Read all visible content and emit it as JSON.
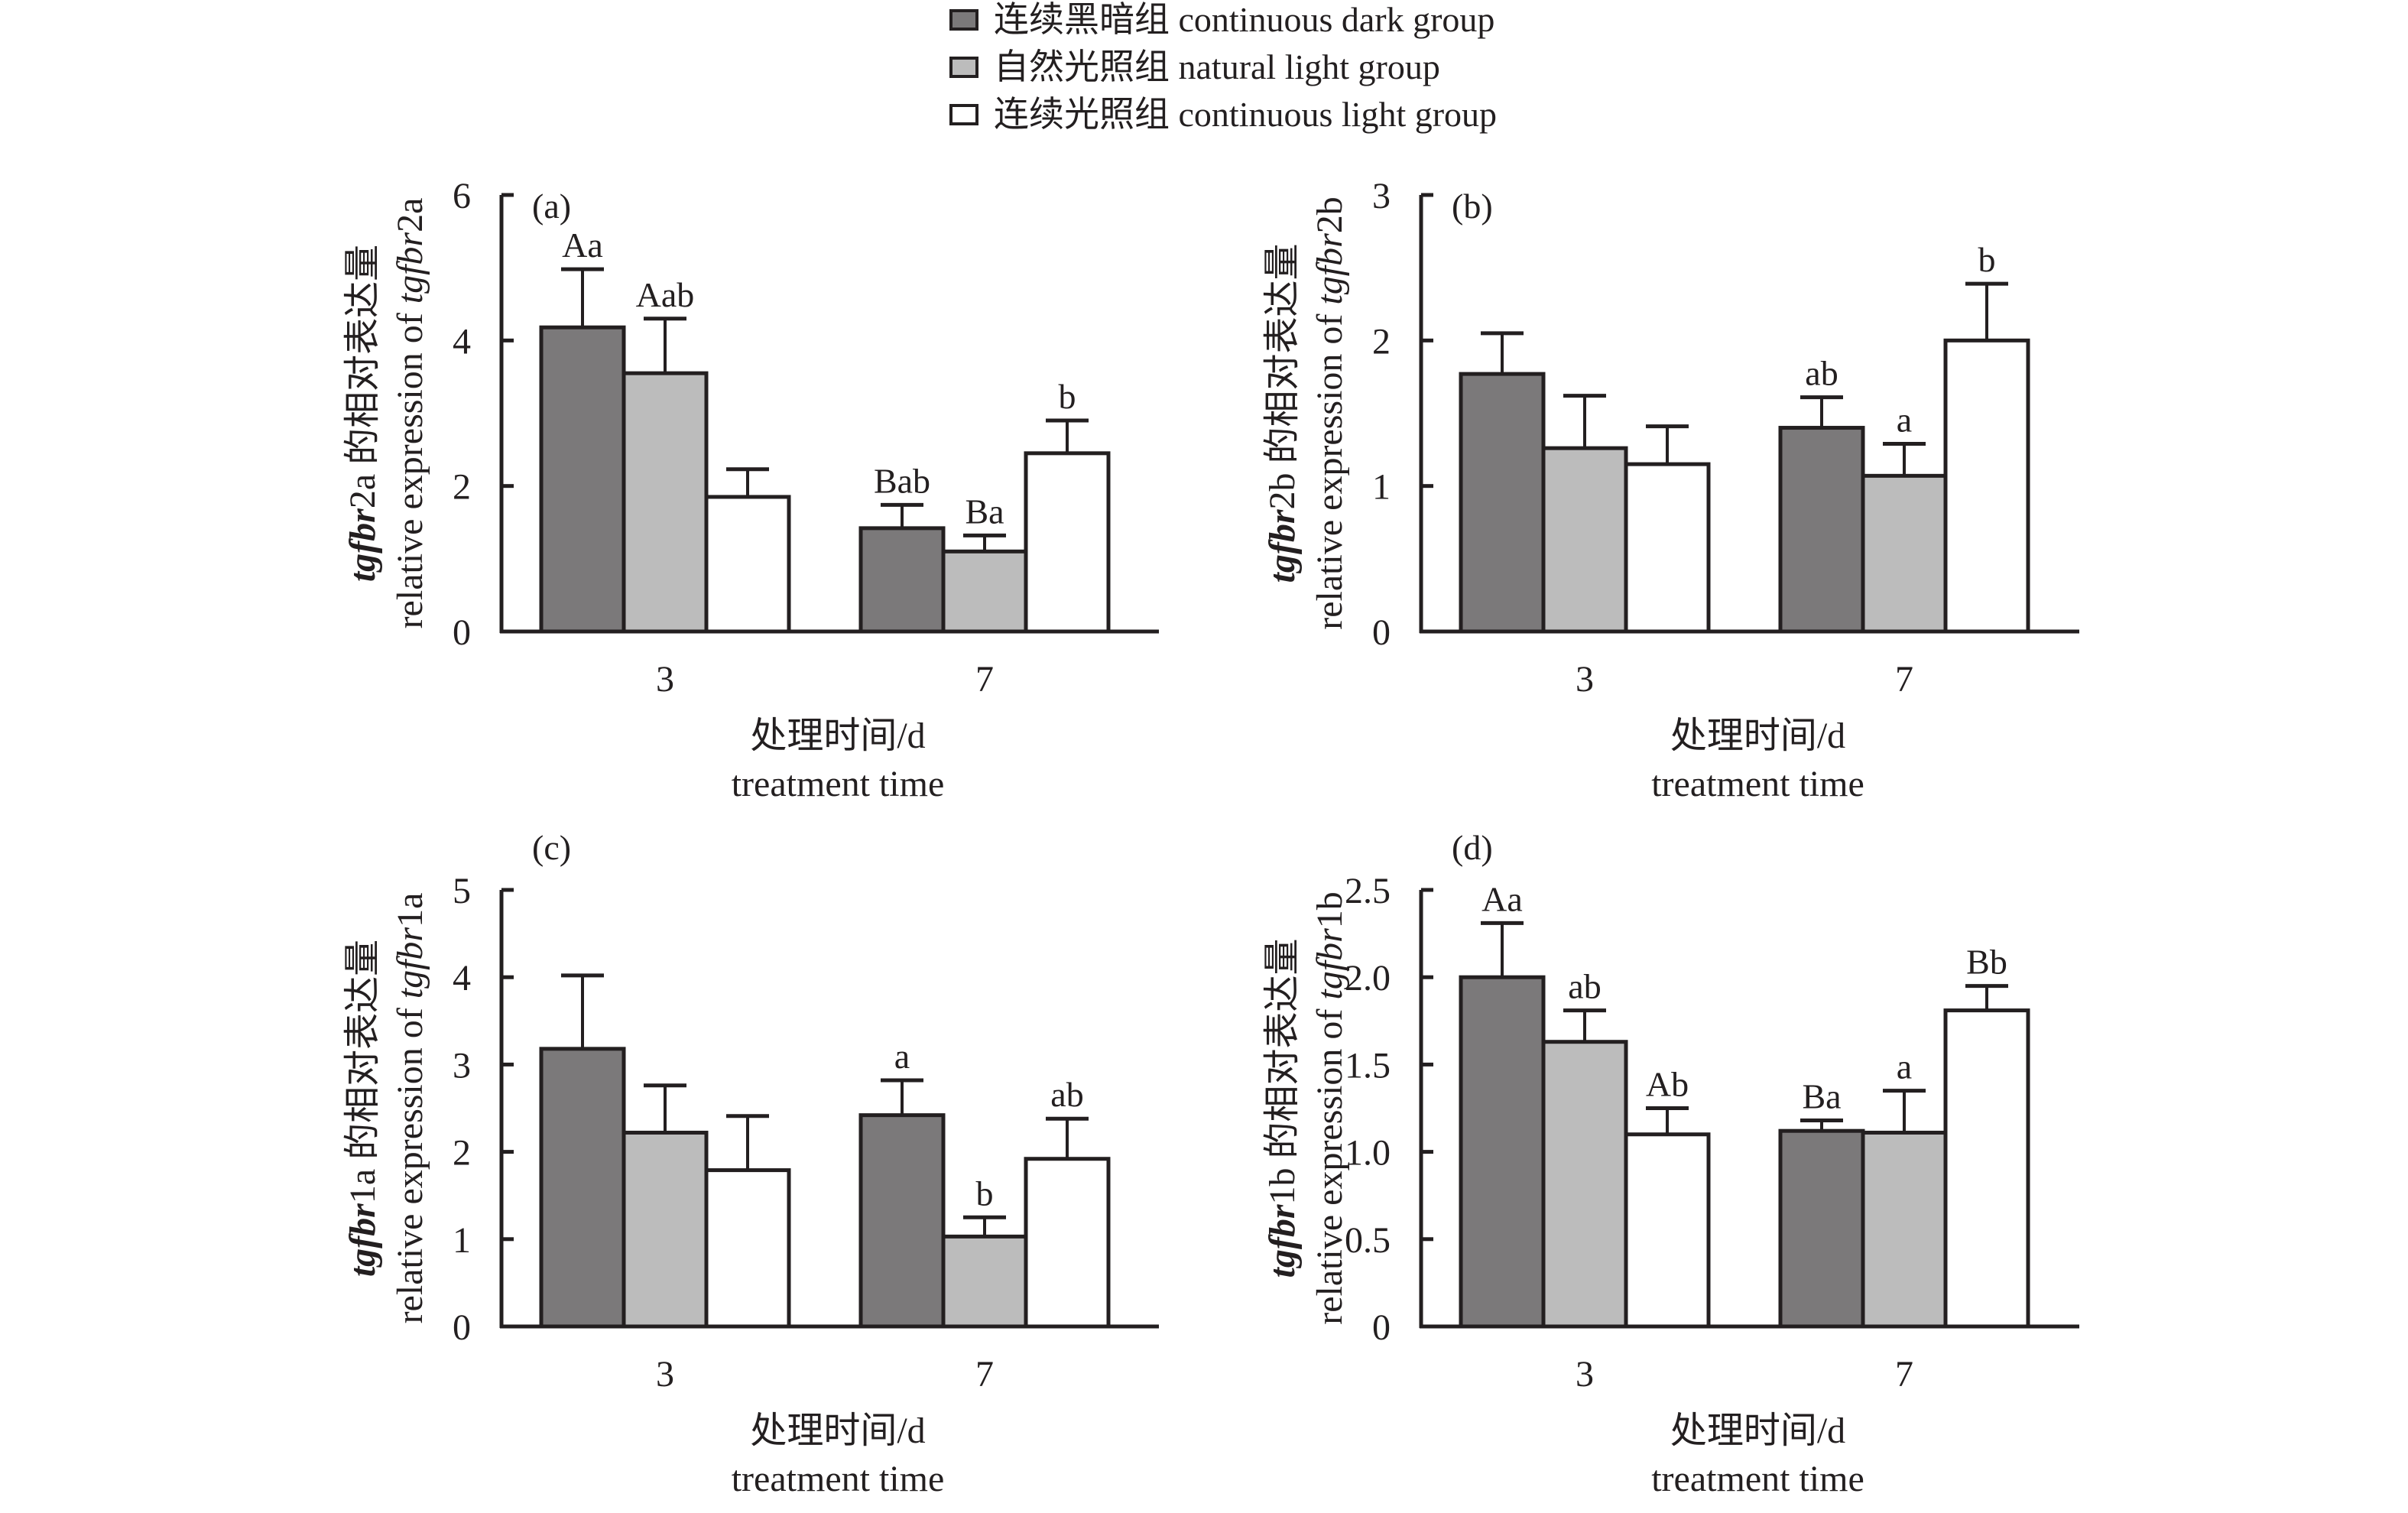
{
  "legend": {
    "position": "top-center",
    "items": [
      {
        "label": "连续黑暗组 continuous dark group",
        "color": "#7b797a"
      },
      {
        "label": "自然光照组 natural light group",
        "color": "#bcbcbc"
      },
      {
        "label": "连续光照组 continuous light group",
        "color": "#ffffff"
      }
    ]
  },
  "chart_data": [
    {
      "type": "bar",
      "panel_label": "(a)",
      "categories": [
        "3",
        "7"
      ],
      "xlabel_cn": "处理时间/d",
      "xlabel_en": "treatment time",
      "ylabel_line1_italic": "tgfbr",
      "ylabel_line1_rest": "2a 的相对表达量",
      "ylabel_line2_prefix": "relative expression of ",
      "ylabel_line2_italic": "tgfbr",
      "ylabel_line2_suffix": "2a",
      "ylim": [
        0,
        6
      ],
      "yticks": [
        "0",
        "2",
        "4",
        "6"
      ],
      "ytick_values": [
        0,
        2,
        4,
        6
      ],
      "series": [
        {
          "name": "连续黑暗组 continuous dark group",
          "values": [
            4.18,
            1.42
          ],
          "errors": [
            0.8,
            0.32
          ],
          "labels": [
            "Aa",
            "Bab"
          ]
        },
        {
          "name": "自然光照组 natural light group",
          "values": [
            3.55,
            1.1
          ],
          "errors": [
            0.75,
            0.22
          ],
          "labels": [
            "Aab",
            "Ba"
          ]
        },
        {
          "name": "连续光照组 continuous light group",
          "values": [
            1.85,
            2.45
          ],
          "errors": [
            0.38,
            0.45
          ],
          "labels": [
            "",
            "b"
          ]
        }
      ]
    },
    {
      "type": "bar",
      "panel_label": "(b)",
      "categories": [
        "3",
        "7"
      ],
      "xlabel_cn": "处理时间/d",
      "xlabel_en": "treatment time",
      "ylabel_line1_italic": "tgfbr",
      "ylabel_line1_rest": "2b 的相对表达量",
      "ylabel_line2_prefix": "relative expression of ",
      "ylabel_line2_italic": "tgfbr",
      "ylabel_line2_suffix": "2b",
      "ylim": [
        0,
        3
      ],
      "yticks": [
        "0",
        "1",
        "2",
        "3"
      ],
      "ytick_values": [
        0,
        1,
        2,
        3
      ],
      "series": [
        {
          "name": "连续黑暗组 continuous dark group",
          "values": [
            1.77,
            1.4
          ],
          "errors": [
            0.28,
            0.21
          ],
          "labels": [
            "",
            "ab"
          ]
        },
        {
          "name": "自然光照组 natural light group",
          "values": [
            1.26,
            1.07
          ],
          "errors": [
            0.36,
            0.22
          ],
          "labels": [
            "",
            "a"
          ]
        },
        {
          "name": "连续光照组 continuous light group",
          "values": [
            1.15,
            2.0
          ],
          "errors": [
            0.26,
            0.39
          ],
          "labels": [
            "",
            "b"
          ]
        }
      ]
    },
    {
      "type": "bar",
      "panel_label": "(c)",
      "categories": [
        "3",
        "7"
      ],
      "xlabel_cn": "处理时间/d",
      "xlabel_en": "treatment time",
      "ylabel_line1_italic": "tgfbr",
      "ylabel_line1_rest": "1a 的相对表达量",
      "ylabel_line2_prefix": "relative expression of ",
      "ylabel_line2_italic": "tgfbr",
      "ylabel_line2_suffix": "1a",
      "ylim": [
        0,
        5
      ],
      "yticks": [
        "0",
        "1",
        "2",
        "3",
        "4",
        "5"
      ],
      "ytick_values": [
        0,
        1,
        2,
        3,
        4,
        5
      ],
      "series": [
        {
          "name": "连续黑暗组 continuous dark group",
          "values": [
            3.18,
            2.42
          ],
          "errors": [
            0.84,
            0.4
          ],
          "labels": [
            "",
            "a"
          ]
        },
        {
          "name": "自然光照组 natural light group",
          "values": [
            2.22,
            1.03
          ],
          "errors": [
            0.54,
            0.22
          ],
          "labels": [
            "",
            "b"
          ]
        },
        {
          "name": "连续光照组 continuous light group",
          "values": [
            1.79,
            1.92
          ],
          "errors": [
            0.62,
            0.46
          ],
          "labels": [
            "",
            "ab"
          ]
        }
      ]
    },
    {
      "type": "bar",
      "panel_label": "(d)",
      "categories": [
        "3",
        "7"
      ],
      "xlabel_cn": "处理时间/d",
      "xlabel_en": "treatment time",
      "ylabel_line1_italic": "tgfbr",
      "ylabel_line1_rest": "1b 的相对表达量",
      "ylabel_line2_prefix": "relative expression of ",
      "ylabel_line2_italic": "tgfbr",
      "ylabel_line2_suffix": "1b",
      "ylim": [
        0,
        2.5
      ],
      "yticks": [
        "0",
        "0.5",
        "1.0",
        "1.5",
        "2.0",
        "2.5"
      ],
      "ytick_values": [
        0,
        0.5,
        1.0,
        1.5,
        2.0,
        2.5
      ],
      "series": [
        {
          "name": "连续黑暗组 continuous dark group",
          "values": [
            2.0,
            1.12
          ],
          "errors": [
            0.31,
            0.06
          ],
          "labels": [
            "Aa",
            "Ba"
          ]
        },
        {
          "name": "自然光照组 natural light group",
          "values": [
            1.63,
            1.11
          ],
          "errors": [
            0.18,
            0.24
          ],
          "labels": [
            "ab",
            "a"
          ]
        },
        {
          "name": "连续光照组 continuous light group",
          "values": [
            1.1,
            1.81
          ],
          "errors": [
            0.15,
            0.14
          ],
          "labels": [
            "Ab",
            "Bb"
          ]
        }
      ]
    }
  ]
}
